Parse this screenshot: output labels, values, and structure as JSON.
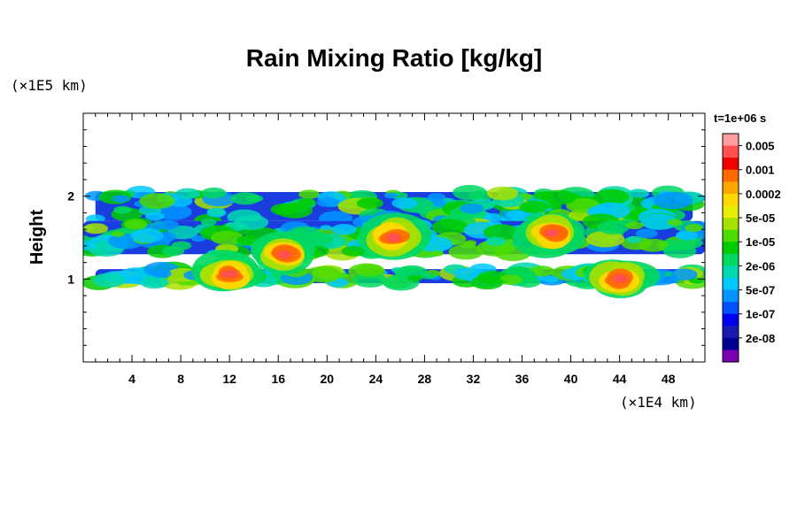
{
  "chart_data": {
    "type": "heatmap",
    "title": "Rain Mixing Ratio [kg/kg]",
    "ylabel": "Height",
    "x_unit": "(×1E4 km)",
    "y_unit": "(×1E5 km)",
    "time_label": "t=1e+06 s",
    "xlim": [
      0,
      51
    ],
    "ylim": [
      0,
      3
    ],
    "x_ticks": [
      4,
      8,
      12,
      16,
      20,
      24,
      28,
      32,
      36,
      40,
      44,
      48
    ],
    "y_ticks": [
      1,
      2
    ],
    "colorbar": {
      "labels": [
        "0.005",
        "0.001",
        "0.0002",
        "5e-05",
        "1e-05",
        "2e-06",
        "5e-07",
        "1e-07",
        "2e-08"
      ],
      "colors": [
        "#ff9f9f",
        "#ff5050",
        "#ee0000",
        "#ff6a00",
        "#ffa500",
        "#ffd800",
        "#e9ee00",
        "#a8e000",
        "#4cdc00",
        "#00cc00",
        "#00d860",
        "#00d8b0",
        "#00c8ff",
        "#0096ff",
        "#0050ff",
        "#0000ee",
        "#1a1ab0",
        "#000090",
        "#7a00b0"
      ]
    },
    "layers": [
      {
        "name": "upper band",
        "x": [
          1,
          50
        ],
        "y": [
          1.7,
          2.05
        ]
      },
      {
        "name": "middle band",
        "x": [
          0,
          51
        ],
        "y": [
          1.3,
          1.7
        ]
      },
      {
        "name": "lower band",
        "x": [
          1,
          51
        ],
        "y": [
          0.95,
          1.12
        ]
      }
    ],
    "maxima": [
      {
        "x": 16.5,
        "y": 1.3
      },
      {
        "x": 25.5,
        "y": 1.5
      },
      {
        "x": 38.5,
        "y": 1.55
      },
      {
        "x": 12,
        "y": 1.05
      },
      {
        "x": 44,
        "y": 1.0
      }
    ]
  }
}
